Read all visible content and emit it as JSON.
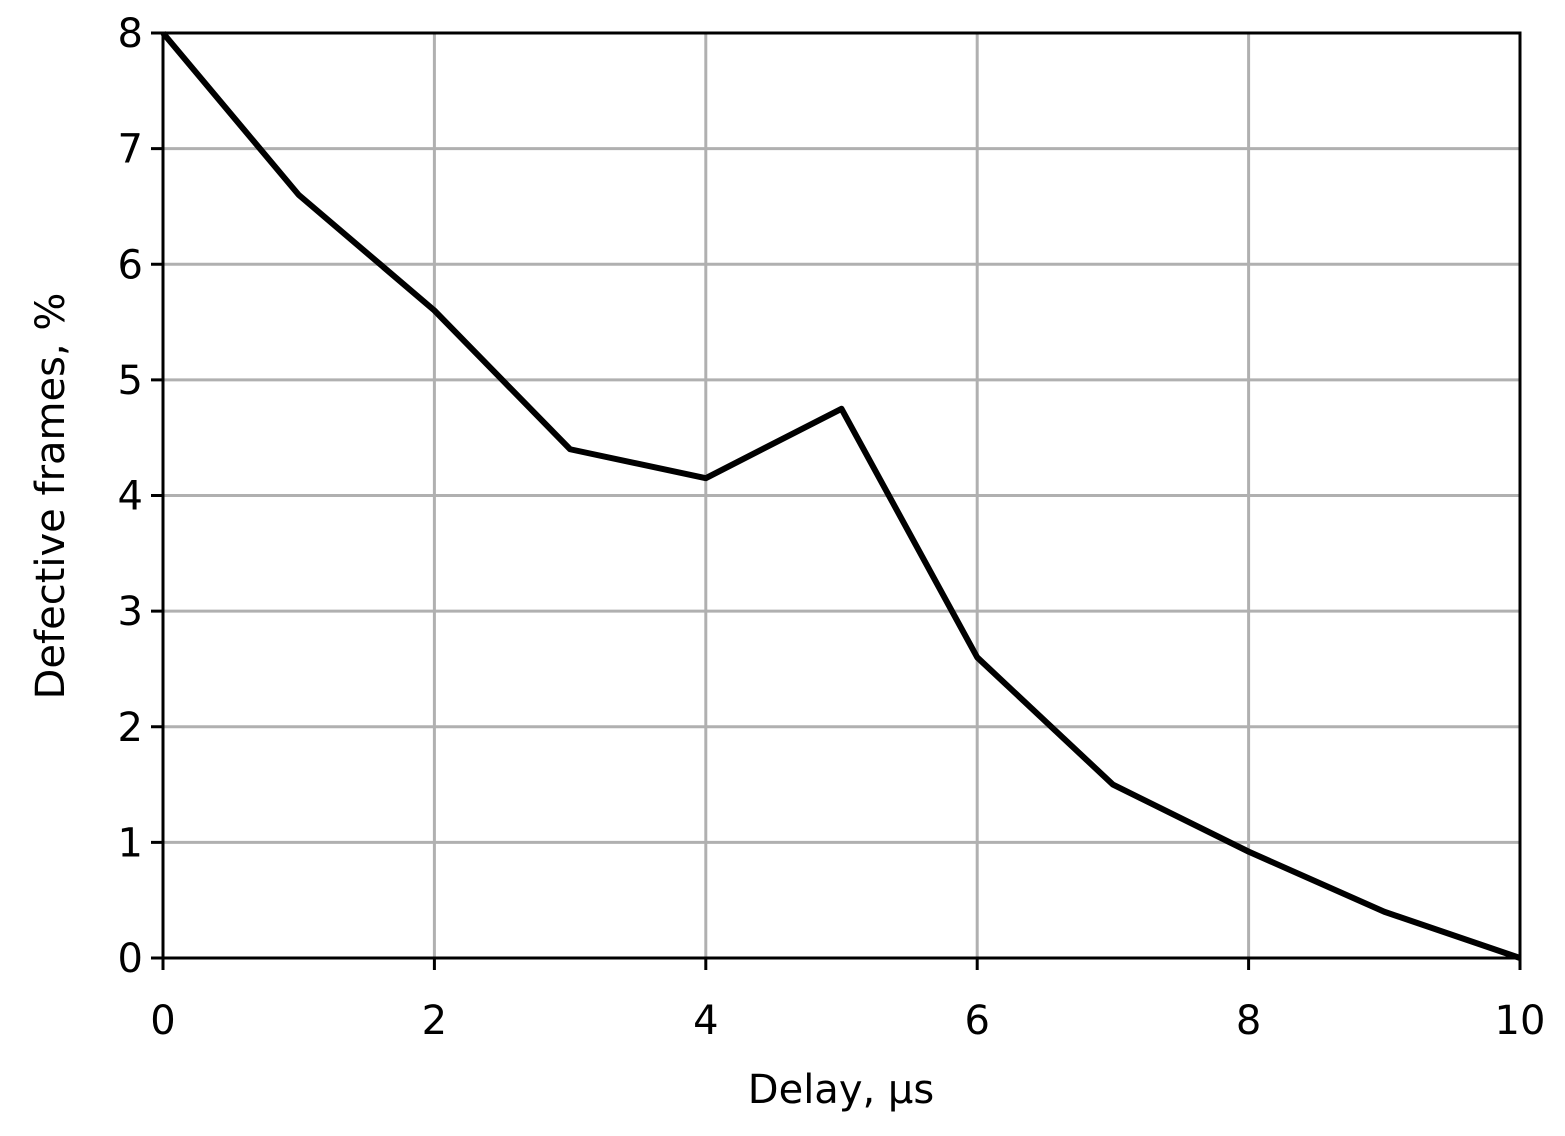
{
  "chart_data": {
    "type": "line",
    "xlabel": "Delay, μs",
    "ylabel": "Defective frames, %",
    "x": [
      0,
      1,
      2,
      3,
      4,
      5,
      6,
      7,
      8,
      9,
      10
    ],
    "series": [
      {
        "color": "#000000",
        "values": [
          8.0,
          6.6,
          5.6,
          4.4,
          4.15,
          4.75,
          2.6,
          1.5,
          0.92,
          0.4,
          0.0
        ]
      }
    ],
    "xlim": [
      0,
      10
    ],
    "xticks": [
      0,
      2,
      4,
      6,
      8,
      10
    ],
    "ylim": [
      0,
      8
    ],
    "yticks": [
      0,
      1,
      2,
      3,
      4,
      5,
      6,
      7,
      8
    ],
    "grid": true
  }
}
